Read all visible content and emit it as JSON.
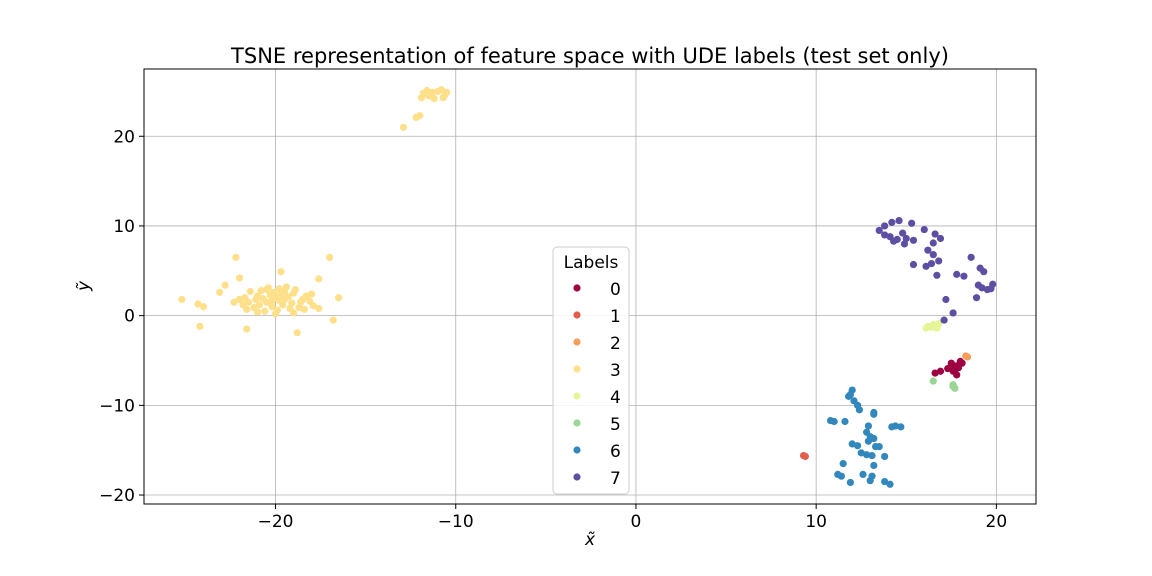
{
  "chart_data": {
    "type": "scatter",
    "title": "TSNE representation of feature space with UDE labels (test set only)",
    "xlabel": "x̃",
    "ylabel": "ỹ",
    "xlim": [
      -27.3,
      22.2
    ],
    "ylim": [
      -21.0,
      27.5
    ],
    "xticks": [
      -20,
      -10,
      0,
      10,
      20
    ],
    "xtick_labels": [
      "−20",
      "−10",
      "0",
      "10",
      "20"
    ],
    "yticks": [
      -20,
      -10,
      0,
      10,
      20
    ],
    "ytick_labels": [
      "−20",
      "−10",
      "0",
      "10",
      "20"
    ],
    "grid": true,
    "legend": {
      "title": "Labels",
      "position": "lower-center"
    },
    "series": [
      {
        "name": "0",
        "color": "#9e0142",
        "points": [
          [
            17.5,
            -5.3
          ],
          [
            17.8,
            -5.6
          ],
          [
            18.0,
            -5.1
          ],
          [
            17.7,
            -6.0
          ],
          [
            17.9,
            -5.8
          ],
          [
            17.6,
            -6.2
          ],
          [
            17.3,
            -5.9
          ],
          [
            17.8,
            -6.6
          ],
          [
            16.6,
            -6.4
          ],
          [
            16.9,
            -6.2
          ],
          [
            17.5,
            -5.5
          ],
          [
            18.1,
            -5.3
          ]
        ]
      },
      {
        "name": "1",
        "color": "#e45c4a",
        "points": [
          [
            9.3,
            -15.6
          ],
          [
            9.4,
            -15.7
          ]
        ]
      },
      {
        "name": "2",
        "color": "#f99d59",
        "points": [
          [
            18.4,
            -4.6
          ],
          [
            18.3,
            -4.5
          ]
        ]
      },
      {
        "name": "3",
        "color": "#fee08b",
        "points": [
          [
            -20.0,
            2.0
          ],
          [
            -20.5,
            1.5
          ],
          [
            -19.5,
            1.8
          ],
          [
            -21.0,
            2.2
          ],
          [
            -19.0,
            2.5
          ],
          [
            -20.2,
            1.0
          ],
          [
            -18.6,
            1.5
          ],
          [
            -21.5,
            1.5
          ],
          [
            -19.8,
            3.0
          ],
          [
            -20.8,
            2.8
          ],
          [
            -19.2,
            0.8
          ],
          [
            -18.9,
            2.9
          ],
          [
            -21.2,
            0.9
          ],
          [
            -20.1,
            2.6
          ],
          [
            -19.6,
            1.2
          ],
          [
            -21.7,
            2.0
          ],
          [
            -18.3,
            2.2
          ],
          [
            -20.6,
            0.5
          ],
          [
            -19.4,
            3.2
          ],
          [
            -20.9,
            1.2
          ],
          [
            -18.7,
            0.9
          ],
          [
            -21.4,
            2.7
          ],
          [
            -19.9,
            0.6
          ],
          [
            -20.4,
            3.1
          ],
          [
            -18.5,
            1.8
          ],
          [
            -21.1,
            1.8
          ],
          [
            -19.3,
            2.1
          ],
          [
            -20.3,
            2.3
          ],
          [
            -19.7,
            2.4
          ],
          [
            -20.7,
            1.9
          ],
          [
            -18.1,
            1.6
          ],
          [
            -21.8,
            1.2
          ],
          [
            -19.1,
            1.4
          ],
          [
            -20.0,
            0.2
          ],
          [
            -19.0,
            0.3
          ],
          [
            -21.0,
            0.4
          ],
          [
            -18.4,
            0.7
          ],
          [
            -21.6,
            0.7
          ],
          [
            -20.5,
            2.9
          ],
          [
            -19.5,
            2.7
          ],
          [
            -22.0,
            1.8
          ],
          [
            -18.0,
            2.4
          ],
          [
            -20.2,
            1.6
          ],
          [
            -19.8,
            1.7
          ],
          [
            -17.9,
            1.1
          ],
          [
            -22.3,
            1.5
          ],
          [
            -22.2,
            6.5
          ],
          [
            -19.7,
            4.9
          ],
          [
            -17.0,
            6.5
          ],
          [
            -17.6,
            4.1
          ],
          [
            -22.0,
            4.2
          ],
          [
            -22.8,
            3.4
          ],
          [
            -25.2,
            1.8
          ],
          [
            -24.3,
            1.3
          ],
          [
            -24.0,
            1.0
          ],
          [
            -23.1,
            2.6
          ],
          [
            -24.2,
            -1.2
          ],
          [
            -21.6,
            -1.5
          ],
          [
            -18.8,
            -1.9
          ],
          [
            -16.8,
            -0.5
          ],
          [
            -16.5,
            2.0
          ],
          [
            -17.6,
            0.8
          ],
          [
            -12.9,
            21.0
          ],
          [
            -12.2,
            22.1
          ],
          [
            -12.0,
            22.3
          ],
          [
            -11.5,
            24.5
          ],
          [
            -11.0,
            25.0
          ],
          [
            -10.6,
            24.6
          ],
          [
            -11.8,
            24.8
          ],
          [
            -11.2,
            24.2
          ],
          [
            -10.8,
            25.2
          ],
          [
            -11.6,
            25.1
          ],
          [
            -10.5,
            24.9
          ],
          [
            -11.3,
            24.9
          ],
          [
            -11.9,
            24.3
          ],
          [
            -10.7,
            24.3
          ]
        ]
      },
      {
        "name": "4",
        "color": "#e6f598",
        "points": [
          [
            16.2,
            -1.2
          ],
          [
            16.5,
            -1.0
          ],
          [
            16.7,
            -1.4
          ],
          [
            16.4,
            -1.3
          ],
          [
            16.8,
            -0.9
          ],
          [
            16.1,
            -1.4
          ],
          [
            16.6,
            -1.2
          ]
        ]
      },
      {
        "name": "5",
        "color": "#99d594",
        "points": [
          [
            16.5,
            -7.3
          ],
          [
            17.6,
            -7.9
          ],
          [
            17.7,
            -8.1
          ],
          [
            17.6,
            -7.7
          ]
        ]
      },
      {
        "name": "6",
        "color": "#3288bd",
        "points": [
          [
            12.0,
            -8.3
          ],
          [
            11.9,
            -8.8
          ],
          [
            11.8,
            -9.0
          ],
          [
            12.1,
            -9.5
          ],
          [
            12.3,
            -10.0
          ],
          [
            12.4,
            -10.5
          ],
          [
            13.2,
            -10.8
          ],
          [
            13.2,
            -11.0
          ],
          [
            10.8,
            -11.7
          ],
          [
            11.0,
            -11.8
          ],
          [
            11.6,
            -11.8
          ],
          [
            12.9,
            -12.3
          ],
          [
            14.2,
            -12.4
          ],
          [
            14.4,
            -12.3
          ],
          [
            14.7,
            -12.4
          ],
          [
            12.8,
            -13.0
          ],
          [
            13.0,
            -13.5
          ],
          [
            13.2,
            -13.7
          ],
          [
            12.9,
            -14.0
          ],
          [
            12.0,
            -14.3
          ],
          [
            12.3,
            -14.5
          ],
          [
            13.3,
            -14.6
          ],
          [
            13.5,
            -14.6
          ],
          [
            12.5,
            -15.3
          ],
          [
            12.8,
            -15.5
          ],
          [
            13.1,
            -15.6
          ],
          [
            13.8,
            -15.7
          ],
          [
            11.5,
            -16.5
          ],
          [
            13.2,
            -16.7
          ],
          [
            11.2,
            -17.7
          ],
          [
            11.4,
            -17.9
          ],
          [
            12.6,
            -17.7
          ],
          [
            13.1,
            -17.9
          ],
          [
            11.9,
            -18.6
          ],
          [
            13.0,
            -18.4
          ],
          [
            13.8,
            -18.5
          ],
          [
            14.1,
            -18.8
          ]
        ]
      },
      {
        "name": "7",
        "color": "#5e4fa2",
        "points": [
          [
            13.8,
            10.0
          ],
          [
            14.2,
            10.4
          ],
          [
            14.6,
            10.6
          ],
          [
            15.3,
            10.3
          ],
          [
            13.5,
            9.5
          ],
          [
            13.8,
            9.0
          ],
          [
            14.1,
            8.8
          ],
          [
            14.5,
            8.5
          ],
          [
            15.0,
            8.6
          ],
          [
            15.4,
            8.4
          ],
          [
            14.8,
            9.2
          ],
          [
            16.0,
            9.6
          ],
          [
            16.6,
            9.1
          ],
          [
            16.9,
            8.6
          ],
          [
            16.5,
            8.1
          ],
          [
            14.3,
            8.3
          ],
          [
            14.9,
            8.0
          ],
          [
            16.2,
            7.3
          ],
          [
            16.5,
            6.8
          ],
          [
            16.8,
            6.1
          ],
          [
            16.4,
            5.8
          ],
          [
            15.4,
            5.7
          ],
          [
            16.1,
            5.5
          ],
          [
            16.7,
            4.5
          ],
          [
            17.8,
            4.6
          ],
          [
            18.2,
            4.4
          ],
          [
            18.6,
            6.5
          ],
          [
            19.1,
            5.3
          ],
          [
            19.3,
            4.9
          ],
          [
            19.0,
            3.4
          ],
          [
            19.2,
            3.1
          ],
          [
            19.5,
            2.9
          ],
          [
            19.8,
            3.5
          ],
          [
            19.7,
            3.0
          ],
          [
            18.9,
            2.0
          ],
          [
            17.2,
            1.8
          ],
          [
            17.6,
            0.3
          ],
          [
            17.1,
            -0.5
          ]
        ]
      }
    ]
  }
}
